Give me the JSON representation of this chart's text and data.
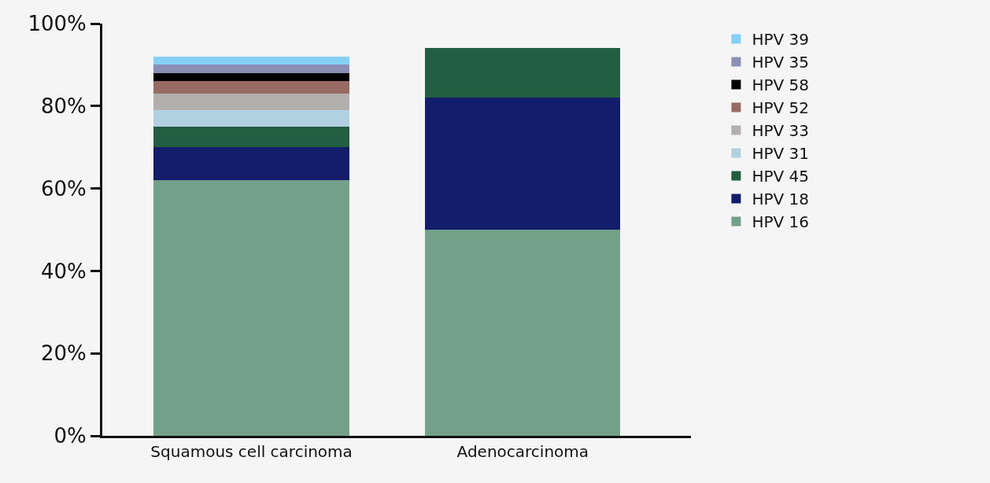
{
  "chart_data": {
    "type": "bar",
    "stacked": true,
    "categories": [
      "Squamous cell carcinoma",
      "Adenocarcinoma"
    ],
    "series": [
      {
        "name": "HPV 16",
        "color": "#72a088",
        "values": [
          62,
          50
        ]
      },
      {
        "name": "HPV 18",
        "color": "#141d69",
        "values": [
          8,
          32
        ]
      },
      {
        "name": "HPV 45",
        "color": "#235d42",
        "values": [
          5,
          12
        ]
      },
      {
        "name": "HPV 31",
        "color": "#b1d0e0",
        "values": [
          4,
          0
        ]
      },
      {
        "name": "HPV 33",
        "color": "#b3afae",
        "values": [
          4,
          0
        ]
      },
      {
        "name": "HPV 52",
        "color": "#986b62",
        "values": [
          3,
          0
        ]
      },
      {
        "name": "HPV 58",
        "color": "#000000",
        "values": [
          2,
          0
        ]
      },
      {
        "name": "HPV 35",
        "color": "#8b8fb5",
        "values": [
          2,
          0
        ]
      },
      {
        "name": "HPV 39",
        "color": "#84d0f7",
        "values": [
          2,
          0
        ]
      }
    ],
    "ylim": [
      0,
      100
    ],
    "yticks": [
      {
        "value": 0,
        "label": "0%"
      },
      {
        "value": 20,
        "label": "20%"
      },
      {
        "value": 40,
        "label": "40%"
      },
      {
        "value": 60,
        "label": "60%"
      },
      {
        "value": 80,
        "label": "80%"
      },
      {
        "value": 100,
        "label": "100%"
      }
    ],
    "grid": false,
    "legend": "right"
  }
}
